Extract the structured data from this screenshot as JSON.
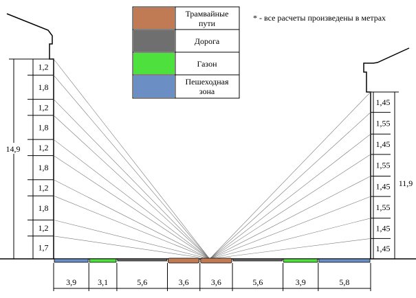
{
  "note": "* - все расчеты произведены в метрах",
  "legend": [
    {
      "label": "Трамвайные пути",
      "color": "#c07a54"
    },
    {
      "label": "Дорога",
      "color": "#6f6f6f"
    },
    {
      "label": "Газон",
      "color": "#4ee03c"
    },
    {
      "label": "Пешеходная зона",
      "color": "#6b8fc4"
    }
  ],
  "left_building": {
    "total": "14,9",
    "floors": [
      "1,2",
      "1,8",
      "1,2",
      "1,8",
      "1,2",
      "1,8",
      "1,2",
      "1,8",
      "1,2",
      "1,7"
    ]
  },
  "right_building": {
    "total": "11,9",
    "floors": [
      "1,45",
      "1,55",
      "1,45",
      "1,55",
      "1,45",
      "1,55",
      "1,45",
      "1,45"
    ]
  },
  "street_segments": [
    {
      "label": "3,9",
      "zone": "Пешеходная зона"
    },
    {
      "label": "3,1",
      "zone": "Газон"
    },
    {
      "label": "5,6",
      "zone": "Дорога"
    },
    {
      "label": "3,6",
      "zone": "Трамвайные пути"
    },
    {
      "label": "3,6",
      "zone": "Трамвайные пути"
    },
    {
      "label": "5,6",
      "zone": "Дорога"
    },
    {
      "label": "3,9",
      "zone": "Газон"
    },
    {
      "label": "5,8",
      "zone": "Пешеходная зона"
    }
  ]
}
